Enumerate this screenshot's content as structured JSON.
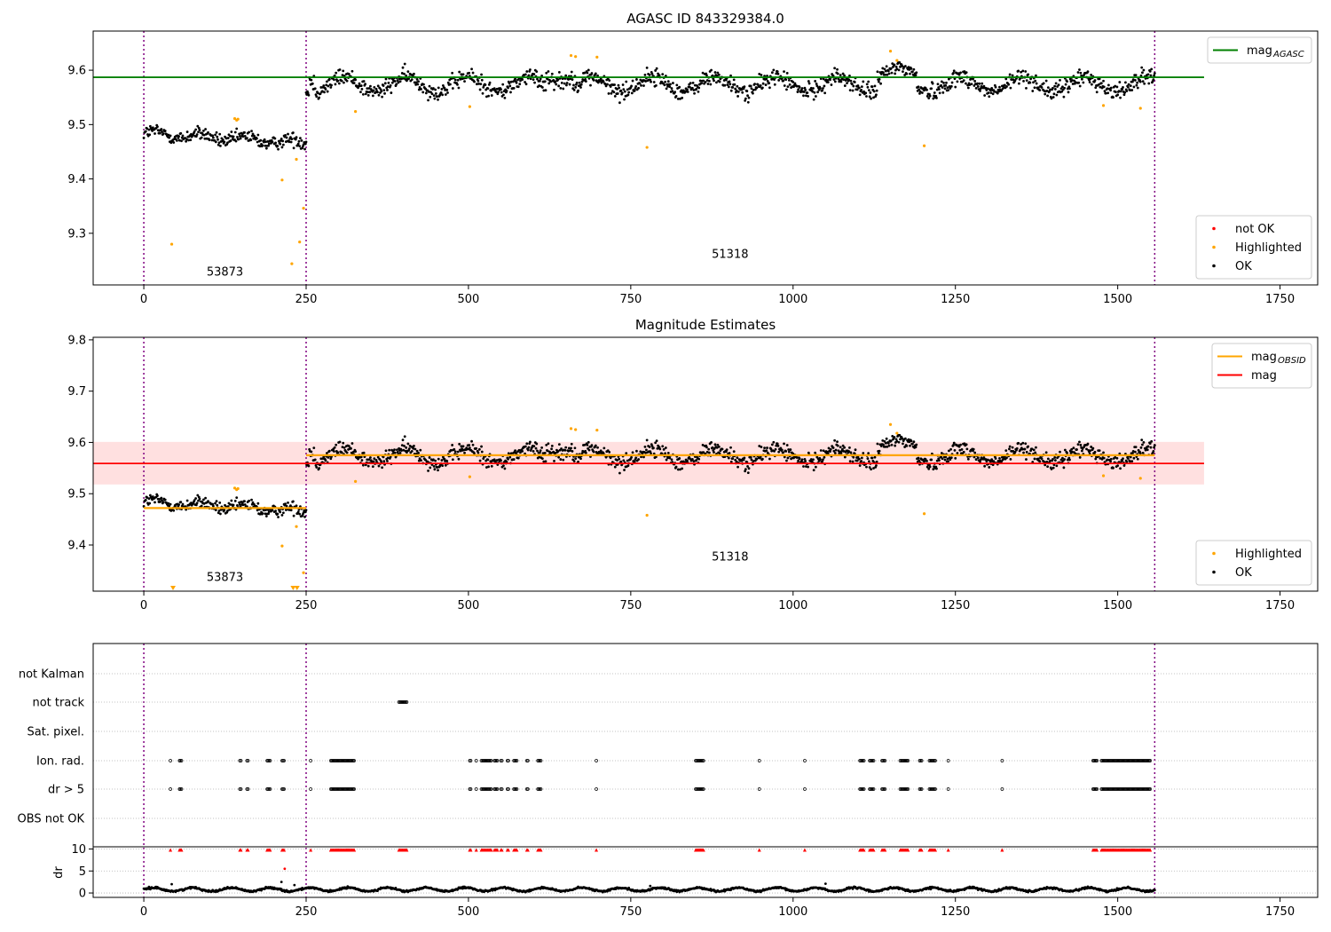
{
  "chart_data": [
    {
      "type": "scatter",
      "title": "AGASC ID 843329384.0",
      "xlim": [
        -78,
        1808
      ],
      "ylim": [
        9.205,
        9.672
      ],
      "xticks": [
        0,
        250,
        500,
        750,
        1000,
        1250,
        1500,
        1750
      ],
      "yticks": [
        9.3,
        9.4,
        9.5,
        9.6
      ],
      "obs_boundaries": [
        0,
        250,
        1557
      ],
      "obs_labels": [
        {
          "text": "53873",
          "x": 125,
          "y": 9.222
        },
        {
          "text": "51318",
          "x": 903,
          "y": 9.255
        }
      ],
      "mag_agasc": {
        "label": "mag",
        "subscript": "AGASC",
        "value": 9.587,
        "x": [
          -78,
          1633
        ],
        "color": "#008000"
      },
      "segments": [
        {
          "x": [
            0,
            250
          ],
          "mean": 9.475,
          "noise": 0.009,
          "drift": -0.018,
          "wave_amp": 0.006,
          "wave_period": 70
        },
        {
          "x": [
            250,
            1557
          ],
          "mean": 9.574,
          "noise": 0.011,
          "drift": 0.0,
          "wave_amp": 0.014,
          "wave_period": 95
        }
      ],
      "bumps": [
        {
          "x": [
            620,
            660
          ],
          "add": 0.02
        },
        {
          "x": [
            1130,
            1190
          ],
          "add": 0.018
        },
        {
          "x": [
            255,
            262
          ],
          "add": 0.02
        }
      ],
      "highlighted": [
        [
          43,
          9.28
        ],
        [
          140,
          9.511
        ],
        [
          143,
          9.508
        ],
        [
          145,
          9.51
        ],
        [
          213,
          9.398
        ],
        [
          228,
          9.244
        ],
        [
          235,
          9.436
        ],
        [
          240,
          9.284
        ],
        [
          246,
          9.346
        ],
        [
          326,
          9.524
        ],
        [
          502,
          9.533
        ],
        [
          658,
          9.627
        ],
        [
          665,
          9.625
        ],
        [
          698,
          9.624
        ],
        [
          775,
          9.458
        ],
        [
          1150,
          9.635
        ],
        [
          1160,
          9.618
        ],
        [
          1202,
          9.461
        ],
        [
          1478,
          9.535
        ],
        [
          1535,
          9.53
        ]
      ],
      "legends": [
        {
          "position": "upper-right",
          "entries": [
            {
              "label": "mag",
              "subscript": "AGASC",
              "kind": "line",
              "color": "#008000"
            }
          ]
        },
        {
          "position": "lower-right",
          "entries": [
            {
              "label": "not OK",
              "kind": "marker",
              "color": "#ff0000"
            },
            {
              "label": "Highlighted",
              "kind": "marker",
              "color": "#ffa500"
            },
            {
              "label": "OK",
              "kind": "marker",
              "color": "#000000"
            }
          ]
        }
      ]
    },
    {
      "type": "scatter",
      "title": "Magnitude Estimates",
      "xlim": [
        -78,
        1808
      ],
      "ylim": [
        9.31,
        9.805
      ],
      "xticks": [
        0,
        250,
        500,
        750,
        1000,
        1250,
        1500,
        1750
      ],
      "yticks": [
        9.4,
        9.5,
        9.6,
        9.7,
        9.8
      ],
      "obs_boundaries": [
        0,
        250,
        1557
      ],
      "obs_labels": [
        {
          "text": "53873",
          "x": 125,
          "y": 9.33
        },
        {
          "text": "51318",
          "x": 903,
          "y": 9.37
        }
      ],
      "mag": {
        "label": "mag",
        "value": 9.559,
        "band": [
          9.518,
          9.601
        ],
        "x": [
          -78,
          1633
        ],
        "color": "#ff0000",
        "band_color": "#ffe0e0"
      },
      "mag_obsid": [
        {
          "x": [
            0,
            250
          ],
          "value": 9.472
        },
        {
          "x": [
            250,
            1557
          ],
          "value": 9.575
        }
      ],
      "mag_obsid_label": {
        "label": "mag",
        "subscript": "OBSID",
        "color": "#ffa500"
      },
      "offscale_markers": [
        45,
        230,
        236
      ],
      "legends": [
        {
          "position": "upper-right",
          "entries": [
            {
              "label": "mag",
              "subscript": "OBSID",
              "kind": "line",
              "color": "#ffa500"
            },
            {
              "label": "mag",
              "kind": "line",
              "color": "#ff0000"
            }
          ]
        },
        {
          "position": "lower-right",
          "entries": [
            {
              "label": "Highlighted",
              "kind": "marker",
              "color": "#ffa500"
            },
            {
              "label": "OK",
              "kind": "marker",
              "color": "#000000"
            }
          ]
        }
      ]
    },
    {
      "type": "scatter",
      "title": "",
      "xlim": [
        -78,
        1808
      ],
      "xticks": [
        0,
        250,
        500,
        750,
        1000,
        1250,
        1500,
        1750
      ],
      "obs_boundaries": [
        0,
        250,
        1557
      ],
      "flag_rows": [
        "not Kalman",
        "not track",
        "Sat. pixel.",
        "Ion. rad.",
        "dr > 5",
        "OBS not OK"
      ],
      "flag_points": {
        "not track": [
          [
            393,
            405
          ]
        ],
        "Ion. rad.": [
          [
            41,
            42
          ],
          [
            55,
            58
          ],
          [
            148,
            150
          ],
          [
            159,
            161
          ],
          [
            190,
            195
          ],
          [
            213,
            217
          ],
          [
            257,
            258
          ],
          [
            288,
            325
          ],
          [
            502,
            504
          ],
          [
            512,
            513
          ],
          [
            520,
            535
          ],
          [
            540,
            545
          ],
          [
            550,
            552
          ],
          [
            560,
            562
          ],
          [
            570,
            575
          ],
          [
            590,
            592
          ],
          [
            607,
            612
          ],
          [
            697,
            698
          ],
          [
            850,
            862
          ],
          [
            948,
            949
          ],
          [
            1018,
            1019
          ],
          [
            1103,
            1110
          ],
          [
            1118,
            1125
          ],
          [
            1137,
            1142
          ],
          [
            1165,
            1178
          ],
          [
            1195,
            1198
          ],
          [
            1210,
            1220
          ],
          [
            1239,
            1240
          ],
          [
            1322,
            1323
          ],
          [
            1462,
            1468
          ],
          [
            1475,
            1550
          ]
        ],
        "dr > 5": [
          [
            41,
            42
          ],
          [
            55,
            58
          ],
          [
            148,
            150
          ],
          [
            159,
            161
          ],
          [
            190,
            195
          ],
          [
            213,
            217
          ],
          [
            257,
            258
          ],
          [
            288,
            325
          ],
          [
            502,
            504
          ],
          [
            512,
            513
          ],
          [
            520,
            535
          ],
          [
            540,
            545
          ],
          [
            550,
            552
          ],
          [
            560,
            562
          ],
          [
            570,
            575
          ],
          [
            590,
            592
          ],
          [
            607,
            612
          ],
          [
            697,
            698
          ],
          [
            850,
            862
          ],
          [
            948,
            949
          ],
          [
            1018,
            1019
          ],
          [
            1103,
            1110
          ],
          [
            1118,
            1125
          ],
          [
            1137,
            1142
          ],
          [
            1165,
            1178
          ],
          [
            1195,
            1198
          ],
          [
            1210,
            1220
          ],
          [
            1239,
            1240
          ],
          [
            1322,
            1323
          ],
          [
            1462,
            1468
          ],
          [
            1475,
            1550
          ]
        ]
      },
      "dr": {
        "ylabel": "dr",
        "ylim": [
          -1,
          10.5
        ],
        "yticks": [
          0,
          5,
          10
        ],
        "baseline": 0.8,
        "wave_amp": 0.4,
        "clip_value": 9.8,
        "outliers": [
          [
            43,
            2.0
          ],
          [
            217,
            5.5
          ],
          [
            212,
            2.5
          ],
          [
            232,
            1.8
          ],
          [
            780,
            1.6
          ],
          [
            1050,
            2.1
          ]
        ]
      }
    }
  ]
}
